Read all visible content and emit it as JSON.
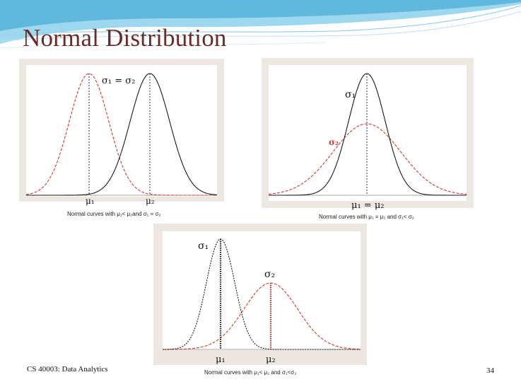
{
  "slide": {
    "title": "Normal Distribution",
    "footer_left": "CS 40003: Data Analytics",
    "page_number": "34"
  },
  "colors": {
    "title": "#6a2a28",
    "curve_black": "#1a1a1a",
    "curve_red": "#d23a2e",
    "panel_frame": "#ece7e0",
    "banner_blue": "#4fb8e0"
  },
  "panels": [
    {
      "id": "equal-sigma",
      "label_sigma": "σ₁ = σ₂",
      "label_mu1": "μ₁",
      "label_mu2": "μ₂",
      "caption": "Normal curves with μ₁< μ₂and σ₁ = σ₂"
    },
    {
      "id": "equal-mu",
      "label_sigma1": "σ₁",
      "label_sigma2": "σ₂",
      "label_mu": "μ₁ = μ₂",
      "caption": "Normal curves with μ₁ = μ₂ and σ₁< σ₂"
    },
    {
      "id": "different-both",
      "label_sigma1": "σ₁",
      "label_sigma2": "σ₂",
      "label_mu1": "μ₁",
      "label_mu2": "μ₂",
      "caption": "Normal curves with μ₁< μ₂ and σ₁<σ₂"
    }
  ]
}
